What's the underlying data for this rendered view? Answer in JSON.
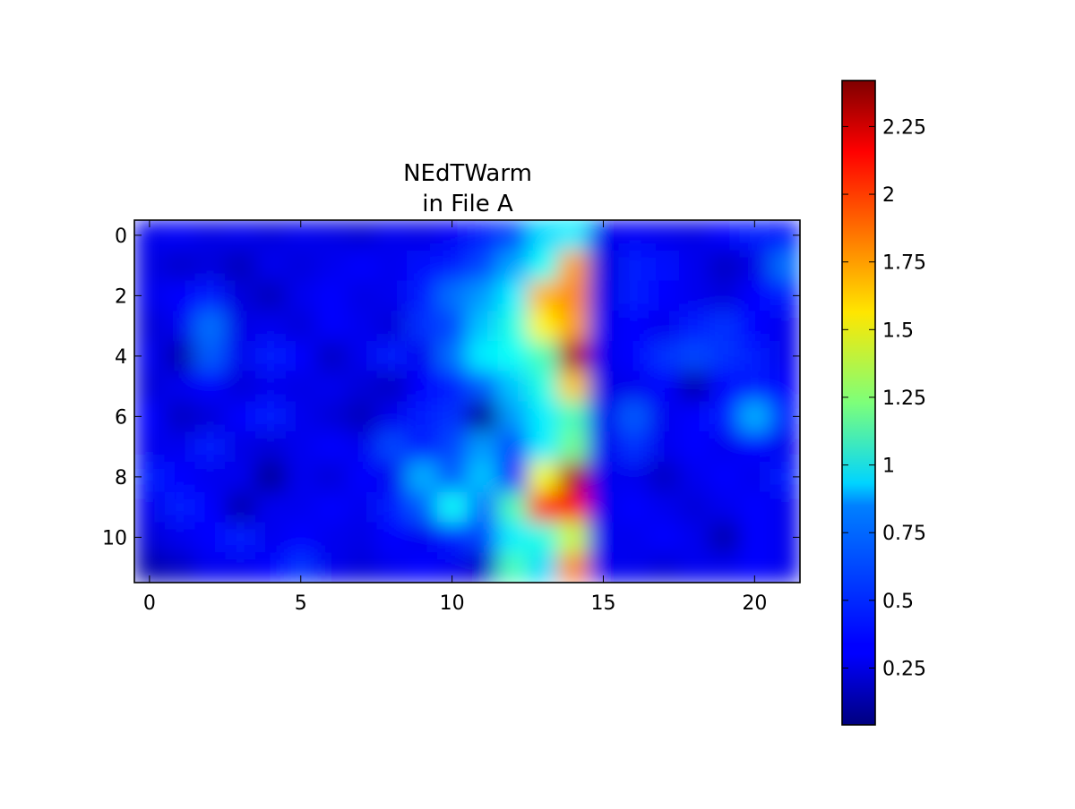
{
  "chart_data": {
    "type": "heatmap",
    "title": "NEdTWarm\nin File A",
    "title_lines": [
      "NEdTWarm",
      "in File A"
    ],
    "xlabel": "",
    "ylabel": "",
    "colormap": "jet",
    "interpolation": "smooth",
    "n_rows": 12,
    "n_cols": 22,
    "xlim": [
      -0.5,
      21.5
    ],
    "ylim": [
      11.5,
      -0.5
    ],
    "x_ticks": [
      0,
      5,
      10,
      15,
      20
    ],
    "y_ticks": [
      0,
      2,
      4,
      6,
      8,
      10
    ],
    "x_tick_labels": [
      "0",
      "5",
      "10",
      "15",
      "20"
    ],
    "y_tick_labels": [
      "0",
      "2",
      "4",
      "6",
      "8",
      "10"
    ],
    "colorbar": {
      "range": [
        0.04,
        2.42
      ],
      "ticks": [
        0.25,
        0.5,
        0.75,
        1,
        1.25,
        1.5,
        1.75,
        2,
        2.25
      ],
      "tick_labels": [
        "0.25",
        "0.5",
        "0.75",
        "1",
        "1.25",
        "1.5",
        "1.75",
        "2",
        "2.25"
      ]
    },
    "grid": false,
    "values": [
      [
        0.3,
        0.32,
        0.28,
        0.3,
        0.26,
        0.3,
        0.28,
        0.24,
        0.3,
        0.28,
        0.32,
        0.4,
        0.5,
        0.85,
        0.9,
        0.3,
        0.32,
        0.3,
        0.28,
        0.34,
        0.4,
        0.38
      ],
      [
        0.28,
        0.22,
        0.26,
        0.18,
        0.3,
        0.26,
        0.3,
        0.34,
        0.3,
        0.36,
        0.4,
        0.5,
        0.72,
        0.95,
        1.75,
        0.26,
        0.4,
        0.36,
        0.3,
        0.2,
        0.28,
        0.6
      ],
      [
        0.3,
        0.35,
        0.4,
        0.26,
        0.18,
        0.3,
        0.34,
        0.28,
        0.3,
        0.4,
        0.6,
        0.7,
        0.9,
        1.7,
        1.8,
        0.28,
        0.4,
        0.34,
        0.3,
        0.26,
        0.35,
        0.4
      ],
      [
        0.25,
        0.3,
        0.6,
        0.28,
        0.3,
        0.25,
        0.35,
        0.3,
        0.25,
        0.45,
        0.5,
        0.8,
        1.0,
        1.55,
        1.75,
        0.3,
        0.35,
        0.3,
        0.4,
        0.45,
        0.35,
        0.3
      ],
      [
        0.3,
        0.15,
        0.55,
        0.3,
        0.4,
        0.35,
        0.2,
        0.3,
        0.4,
        0.3,
        0.6,
        0.9,
        0.95,
        1.1,
        2.3,
        0.3,
        0.35,
        0.45,
        0.5,
        0.45,
        0.4,
        0.3
      ],
      [
        0.25,
        0.3,
        0.35,
        0.25,
        0.3,
        0.28,
        0.3,
        0.25,
        0.2,
        0.35,
        0.4,
        0.55,
        0.8,
        1.0,
        1.65,
        0.28,
        0.3,
        0.35,
        0.15,
        0.35,
        0.4,
        0.35
      ],
      [
        0.35,
        0.2,
        0.25,
        0.35,
        0.4,
        0.3,
        0.25,
        0.18,
        0.3,
        0.4,
        0.45,
        0.1,
        0.7,
        0.9,
        1.1,
        0.3,
        0.55,
        0.3,
        0.35,
        0.4,
        0.75,
        0.4
      ],
      [
        0.3,
        0.3,
        0.4,
        0.28,
        0.25,
        0.3,
        0.35,
        0.3,
        0.5,
        0.4,
        0.5,
        0.7,
        0.5,
        0.9,
        1.2,
        0.3,
        0.45,
        0.3,
        0.35,
        0.3,
        0.35,
        0.3
      ],
      [
        0.4,
        0.35,
        0.3,
        0.3,
        0.1,
        0.3,
        0.25,
        0.35,
        0.3,
        0.75,
        0.55,
        0.8,
        0.4,
        1.5,
        2.3,
        0.3,
        0.3,
        0.2,
        0.3,
        0.35,
        0.3,
        0.4
      ],
      [
        0.3,
        0.4,
        0.35,
        0.15,
        0.3,
        0.3,
        0.35,
        0.3,
        0.4,
        0.55,
        0.95,
        0.6,
        1.1,
        2.05,
        2.1,
        0.3,
        0.35,
        0.3,
        0.25,
        0.3,
        0.35,
        0.3
      ],
      [
        0.25,
        0.3,
        0.35,
        0.4,
        0.3,
        0.35,
        0.3,
        0.28,
        0.35,
        0.3,
        0.4,
        0.5,
        0.9,
        1.0,
        1.4,
        0.3,
        0.3,
        0.35,
        0.3,
        0.15,
        0.35,
        0.3
      ],
      [
        0.15,
        0.2,
        0.3,
        0.3,
        0.35,
        0.45,
        0.3,
        0.25,
        0.3,
        0.35,
        0.3,
        0.2,
        1.1,
        0.85,
        1.8,
        0.3,
        0.3,
        0.25,
        0.3,
        0.3,
        0.35,
        0.3
      ]
    ]
  }
}
